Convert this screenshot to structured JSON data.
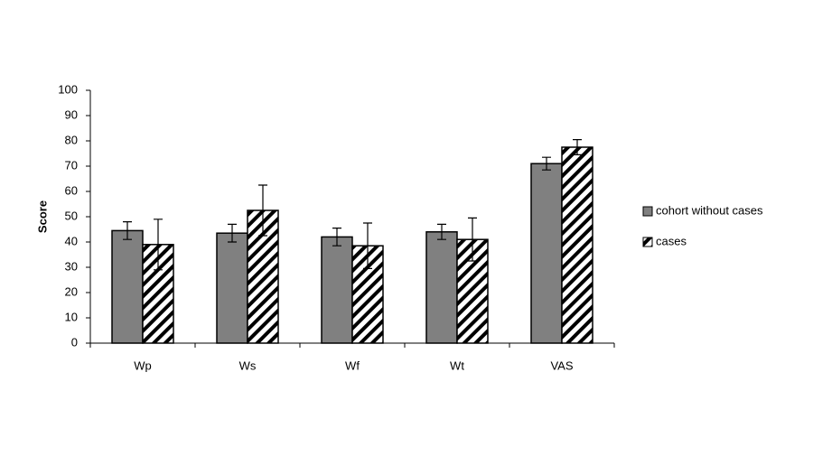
{
  "chart_data": {
    "type": "bar",
    "y_label": "Score",
    "categories": [
      "Wp",
      "Ws",
      "Wf",
      "Wt",
      "VAS"
    ],
    "series": [
      {
        "name": "cohort without cases",
        "color": "#808080",
        "pattern": "solid",
        "values": [
          44.5,
          43.5,
          42,
          44,
          71
        ],
        "errors": [
          3.5,
          3.5,
          3.5,
          3,
          2.5
        ]
      },
      {
        "name": "cases",
        "color": "#000000",
        "pattern": "hatch",
        "values": [
          39,
          52.5,
          38.5,
          41,
          77.5
        ],
        "errors": [
          10,
          10,
          9,
          8.5,
          3
        ]
      }
    ],
    "ylim": [
      0,
      100
    ],
    "yticks": [
      0,
      10,
      20,
      30,
      40,
      50,
      60,
      70,
      80,
      90,
      100
    ],
    "grid": false
  }
}
